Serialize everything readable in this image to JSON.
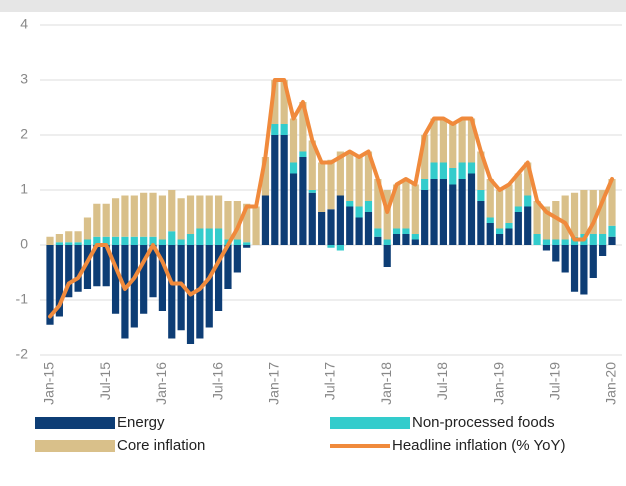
{
  "chart_data": {
    "type": "bar",
    "stacked": true,
    "legend": "bottom",
    "grid": true,
    "categories": [
      "Jan-15",
      null,
      null,
      null,
      null,
      null,
      "Jul-15",
      null,
      null,
      null,
      null,
      null,
      "Jan-16",
      null,
      null,
      null,
      null,
      null,
      "Jul-16",
      null,
      null,
      null,
      null,
      null,
      "Jan-17",
      null,
      null,
      null,
      null,
      null,
      "Jul-17",
      null,
      null,
      null,
      null,
      null,
      "Jan-18",
      null,
      null,
      null,
      null,
      null,
      "Jul-18",
      null,
      null,
      null,
      null,
      null,
      "Jan-19",
      null,
      null,
      null,
      null,
      null,
      "Jul-19",
      null,
      null,
      null,
      null,
      null,
      "Jan-20"
    ],
    "ylim": [
      -2,
      4
    ],
    "yticks": [
      -2,
      -1,
      0,
      1,
      2,
      3,
      4
    ],
    "series": [
      {
        "name": "Energy",
        "color": "#0d3d75",
        "values": [
          -1.45,
          -1.3,
          -0.95,
          -0.85,
          -0.8,
          -0.75,
          -0.75,
          -1.25,
          -1.7,
          -1.5,
          -1.25,
          -0.95,
          -1.2,
          -1.7,
          -1.55,
          -1.8,
          -1.7,
          -1.5,
          -1.2,
          -0.8,
          -0.5,
          -0.05,
          0,
          0.9,
          2.0,
          2.0,
          1.3,
          1.6,
          0.95,
          0.6,
          0.65,
          0.9,
          0.7,
          0.5,
          0.6,
          0.15,
          -0.4,
          0.2,
          0.2,
          0.1,
          1.0,
          1.2,
          1.2,
          1.1,
          1.2,
          1.3,
          0.8,
          0.4,
          0.2,
          0.3,
          0.6,
          0.7,
          0,
          -0.1,
          -0.3,
          -0.5,
          -0.85,
          -0.9,
          -0.6,
          -0.2,
          0.15
        ]
      },
      {
        "name": "Non-processed foods",
        "color": "#33cccc",
        "values": [
          0,
          0.05,
          0.05,
          0.05,
          0.1,
          0.15,
          0.15,
          0.15,
          0.15,
          0.15,
          0.15,
          0.15,
          0.1,
          0.25,
          0.1,
          0.2,
          0.3,
          0.3,
          0.3,
          0.1,
          0.1,
          0.05,
          0,
          0,
          0.2,
          0.2,
          0.2,
          0.1,
          0.05,
          0,
          -0.05,
          -0.1,
          0.1,
          0.2,
          0.2,
          0.15,
          0.1,
          0.1,
          0.1,
          0.1,
          0.2,
          0.3,
          0.3,
          0.3,
          0.3,
          0.2,
          0.2,
          0.1,
          0.1,
          0.1,
          0.1,
          0.2,
          0.2,
          0.1,
          0.1,
          0.1,
          0.15,
          0.2,
          0.2,
          0.2,
          0.2
        ]
      },
      {
        "name": "Core inflation",
        "color": "#d9c08a",
        "values": [
          0.15,
          0.15,
          0.2,
          0.2,
          0.4,
          0.6,
          0.6,
          0.7,
          0.75,
          0.75,
          0.8,
          0.8,
          0.8,
          0.75,
          0.75,
          0.7,
          0.6,
          0.6,
          0.6,
          0.7,
          0.7,
          0.7,
          0.7,
          0.7,
          0.8,
          0.8,
          0.8,
          0.9,
          0.9,
          0.9,
          0.9,
          0.8,
          0.9,
          0.9,
          0.9,
          0.9,
          0.9,
          0.8,
          0.9,
          0.9,
          0.8,
          0.8,
          0.8,
          0.8,
          0.8,
          0.8,
          0.7,
          0.7,
          0.7,
          0.7,
          0.6,
          0.6,
          0.6,
          0.6,
          0.7,
          0.8,
          0.8,
          0.8,
          0.8,
          0.8,
          0.85
        ]
      },
      {
        "name": "Headline inflation (% YoY)",
        "type": "line",
        "color": "#f08a3c",
        "values": [
          -1.3,
          -1.1,
          -0.7,
          -0.6,
          -0.3,
          0,
          0,
          -0.4,
          -0.8,
          -0.6,
          -0.3,
          0,
          -0.3,
          -0.7,
          -0.7,
          -0.9,
          -0.8,
          -0.6,
          -0.3,
          0,
          0.3,
          0.7,
          0.7,
          1.6,
          3.0,
          3.0,
          2.3,
          2.6,
          1.9,
          1.5,
          1.5,
          1.6,
          1.7,
          1.6,
          1.7,
          1.2,
          0.6,
          1.1,
          1.2,
          1.1,
          2.0,
          2.3,
          2.3,
          2.2,
          2.3,
          2.3,
          1.7,
          1.2,
          1.0,
          1.1,
          1.3,
          1.5,
          0.8,
          0.6,
          0.5,
          0.4,
          0.1,
          0.1,
          0.4,
          0.8,
          1.2
        ]
      }
    ]
  }
}
